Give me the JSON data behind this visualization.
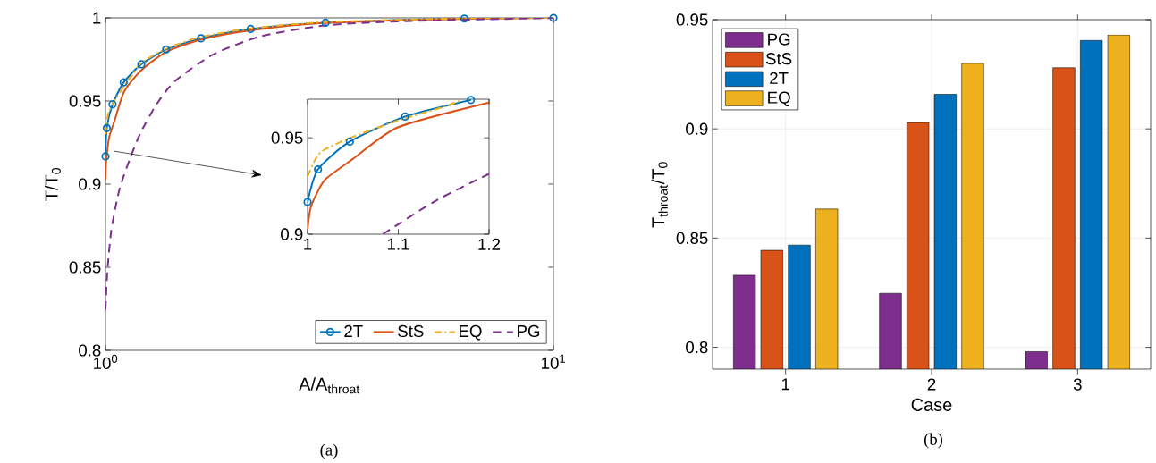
{
  "chart_data": [
    {
      "type": "line",
      "xlabel": "A/A$_{throat}$",
      "ylabel": "T/T$_{0}$",
      "log": "x",
      "xlim": [
        1,
        10
      ],
      "ylim": [
        0.8,
        1
      ],
      "xticks": [
        {
          "value": 1,
          "label": "10$^{0}$"
        },
        {
          "value": 10,
          "label": "10$^{1}$"
        }
      ],
      "yticks": [
        0.8,
        0.85,
        0.9,
        0.95,
        1
      ],
      "legend": "bottom right",
      "annotations": [
        "(a)"
      ],
      "series": [
        {
          "name": "2T",
          "color": "#0072bd",
          "marker": "circle",
          "line_style": "solid",
          "x": [
            1,
            1.0066,
            1.037,
            1.098,
            1.202,
            1.366,
            1.634,
            2.109,
            3.1,
            6.33,
            10
          ],
          "values": [
            0.9167,
            0.9337,
            0.948,
            0.9612,
            0.9721,
            0.981,
            0.9877,
            0.9933,
            0.9971,
            0.9996,
            1.0
          ]
        },
        {
          "name": "StS",
          "color": "#d95319",
          "marker": "none",
          "line_style": "solid",
          "x": [
            1,
            1.003,
            1.01,
            1.02,
            1.05,
            1.1,
            1.2,
            1.366,
            1.634,
            2.109,
            3.1,
            6.33,
            10
          ],
          "values": [
            0.9025,
            0.913,
            0.921,
            0.9286,
            0.939,
            0.9555,
            0.9683,
            0.9795,
            0.987,
            0.9925,
            0.997,
            0.9995,
            1.0
          ]
        },
        {
          "name": "EQ",
          "color": "#edb120",
          "marker": "none",
          "line_style": "dashdot",
          "x": [
            1,
            1.01,
            1.02,
            1.05,
            1.1,
            1.15,
            1.2,
            1.366,
            1.634,
            2.109,
            3.1,
            6.33,
            10
          ],
          "values": [
            0.93,
            0.94,
            0.9442,
            0.9505,
            0.959,
            0.966,
            0.9728,
            0.9815,
            0.9885,
            0.9937,
            0.9975,
            0.9997,
            1.0
          ]
        },
        {
          "name": "PG",
          "color": "#7e2f8e",
          "marker": "none",
          "line_style": "dashed",
          "x": [
            1,
            1.01,
            1.03,
            1.06,
            1.083,
            1.14,
            1.2,
            1.3,
            1.43,
            1.74,
            2.23,
            3.1,
            4.66,
            10
          ],
          "values": [
            0.8246,
            0.848,
            0.872,
            0.89,
            0.9,
            0.917,
            0.9313,
            0.948,
            0.962,
            0.978,
            0.989,
            0.9955,
            0.998,
            1.0
          ]
        }
      ]
    },
    {
      "type": "line",
      "xlim": [
        1,
        1.2
      ],
      "ylim": [
        0.9,
        0.97
      ],
      "xticks": [
        1,
        1.1,
        1.2
      ],
      "yticks": [
        0.9,
        0.95
      ],
      "series": [
        {
          "color": "#0072bd",
          "marker": "circle",
          "line_style": "solid",
          "x": [
            1,
            1.0115,
            1.0466,
            1.1075,
            1.18
          ],
          "values": [
            0.9167,
            0.9336,
            0.948,
            0.961,
            0.9696
          ]
        },
        {
          "color": "#d95319",
          "marker": "none",
          "line_style": "solid",
          "x": [
            1,
            1.003,
            1.01,
            1.02,
            1.05,
            1.1,
            1.2
          ],
          "values": [
            0.9025,
            0.913,
            0.921,
            0.9286,
            0.939,
            0.9555,
            0.9683
          ]
        },
        {
          "color": "#edb120",
          "marker": "none",
          "line_style": "dashdot",
          "x": [
            1,
            1.01,
            1.02,
            1.05,
            1.1,
            1.15,
            1.17
          ],
          "values": [
            0.93,
            0.94,
            0.9442,
            0.9505,
            0.959,
            0.966,
            0.9696
          ]
        },
        {
          "color": "#7e2f8e",
          "marker": "none",
          "line_style": "dashed",
          "x": [
            1.083,
            1.14,
            1.2
          ],
          "values": [
            0.9,
            0.917,
            0.9313
          ]
        }
      ]
    },
    {
      "type": "bar",
      "xlabel": "Case",
      "ylabel": "T$_{throat}$/T$_{0}$",
      "categories": [
        "1",
        "2",
        "3"
      ],
      "ylim": [
        0.79,
        0.95
      ],
      "yticks": [
        0.8,
        0.85,
        0.9,
        0.95
      ],
      "grid": true,
      "legend": "top left",
      "annotations": [
        "(b)"
      ],
      "series": [
        {
          "name": "PG",
          "color": "#7e2f8e",
          "values": [
            0.833,
            0.8247,
            0.798
          ]
        },
        {
          "name": "StS",
          "color": "#d95319",
          "values": [
            0.8444,
            0.9029,
            0.928
          ]
        },
        {
          "name": "2T",
          "color": "#0072bd",
          "values": [
            0.8468,
            0.9158,
            0.9405
          ]
        },
        {
          "name": "EQ",
          "color": "#edb120",
          "values": [
            0.8633,
            0.93,
            0.943
          ]
        }
      ]
    }
  ]
}
